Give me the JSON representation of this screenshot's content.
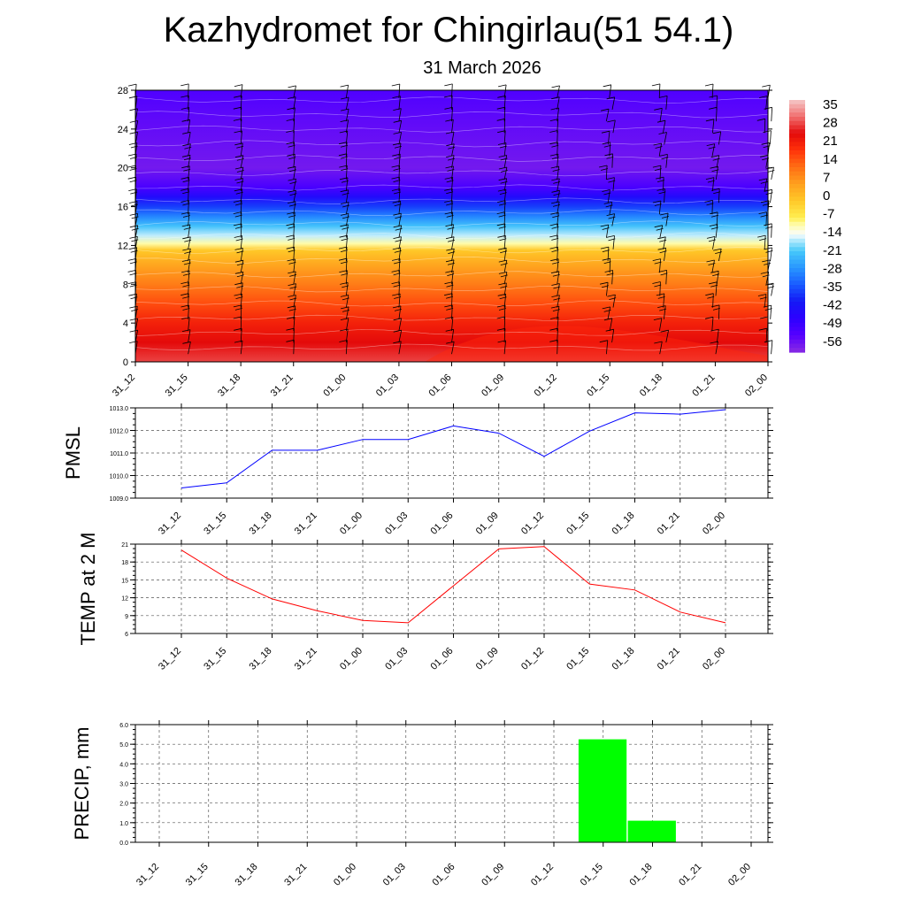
{
  "title": "Kazhydromet for Chingirlau(51 54.1)",
  "subtitle": "31 March 2026",
  "time_labels": [
    "31_12",
    "31_15",
    "31_18",
    "31_21",
    "01_00",
    "01_03",
    "01_06",
    "01_09",
    "01_12",
    "01_15",
    "01_18",
    "01_21",
    "02_00"
  ],
  "colors": {
    "pmsl_line": "#0000ff",
    "temp_line": "#ff0000",
    "precip_bar": "#00ff00"
  },
  "chart_data": [
    {
      "type": "heatmap",
      "name": "vertical-section",
      "yticks": [
        "0",
        "4",
        "8",
        "12",
        "16",
        "20",
        "24",
        "28"
      ],
      "ylim": [
        0,
        28
      ],
      "colorbar_labels": [
        "35",
        "28",
        "21",
        "14",
        "7",
        "0",
        "-7",
        "-14",
        "-21",
        "-28",
        "-35",
        "-42",
        "-49",
        "-56"
      ],
      "colorbar_range": [
        -63,
        42
      ],
      "temperature_profile": [
        {
          "level": 0,
          "value": 32
        },
        {
          "level": 2,
          "value": 28
        },
        {
          "level": 4,
          "value": 24
        },
        {
          "level": 6,
          "value": 18
        },
        {
          "level": 8,
          "value": 12
        },
        {
          "level": 10,
          "value": 6
        },
        {
          "level": 11.5,
          "value": 0
        },
        {
          "level": 12.2,
          "value": -10
        },
        {
          "level": 13,
          "value": -16
        },
        {
          "level": 14,
          "value": -22
        },
        {
          "level": 15,
          "value": -30
        },
        {
          "level": 16,
          "value": -38
        },
        {
          "level": 17,
          "value": -46
        },
        {
          "level": 18,
          "value": -54
        },
        {
          "level": 20,
          "value": -60
        },
        {
          "level": 24,
          "value": -58
        },
        {
          "level": 28,
          "value": -55
        }
      ]
    },
    {
      "type": "line",
      "name": "pmsl",
      "ylabel": "PMSL",
      "ylim": [
        1009.0,
        1013.0
      ],
      "yticks": [
        "1009.0",
        "1010.0",
        "1011.0",
        "1012.0",
        "1013.0"
      ],
      "values": [
        1009.45,
        1009.68,
        1011.12,
        1011.12,
        1011.6,
        1011.6,
        1012.2,
        1011.88,
        1010.85,
        1011.97,
        1012.78,
        1012.72,
        1012.92
      ]
    },
    {
      "type": "line",
      "name": "temp-2m",
      "ylabel": "TEMP at 2 M",
      "ylim": [
        6,
        21
      ],
      "yticks": [
        "6",
        "9",
        "12",
        "15",
        "18",
        "21"
      ],
      "values": [
        20.0,
        15.3,
        11.8,
        9.8,
        8.2,
        7.8,
        14.0,
        20.2,
        20.6,
        14.3,
        13.3,
        9.6,
        7.8
      ]
    },
    {
      "type": "bar",
      "name": "precip",
      "ylabel": "PRECIP, mm",
      "ylim": [
        0,
        6
      ],
      "yticks": [
        "0.0",
        "1.0",
        "2.0",
        "3.0",
        "4.0",
        "5.0",
        "6.0"
      ],
      "values": [
        0,
        0,
        0,
        0,
        0,
        0,
        0,
        0,
        0,
        5.25,
        1.1,
        0,
        0
      ]
    }
  ]
}
